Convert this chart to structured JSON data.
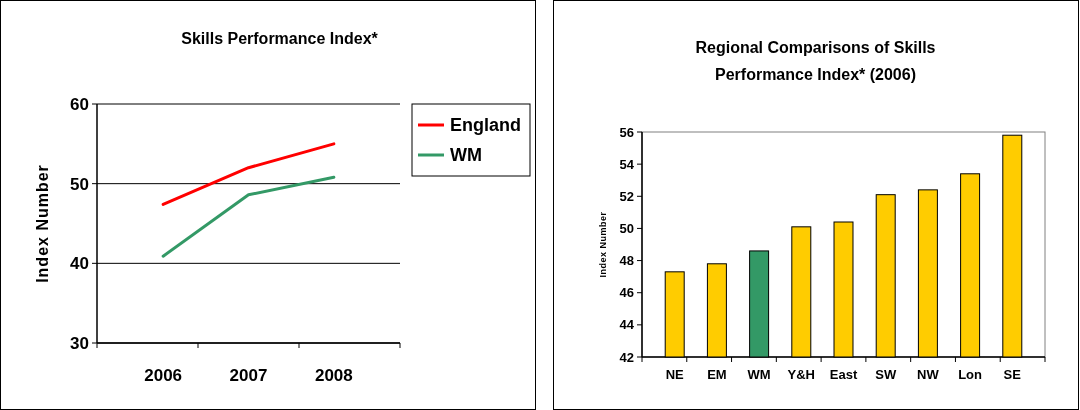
{
  "chart_data": [
    {
      "type": "line",
      "title": "Skills Performance Index*",
      "ylabel": "Index Number",
      "categories": [
        "2006",
        "2007",
        "2008"
      ],
      "series": [
        {
          "name": "England",
          "color": "#ff0000",
          "values": [
            47.4,
            52.0,
            55.0
          ]
        },
        {
          "name": "WM",
          "color": "#339966",
          "values": [
            40.9,
            48.6,
            50.8
          ]
        }
      ],
      "ylim": [
        30,
        60
      ],
      "yticks": [
        30,
        40,
        50,
        60
      ],
      "grid": "y",
      "legend": "top right",
      "marker": "none"
    },
    {
      "type": "bar",
      "title": "Regional Comparisons of Skills Performance Index* (2006)",
      "ylabel": "Index Number",
      "categories": [
        "NE",
        "EM",
        "WM",
        "Y&H",
        "East",
        "SW",
        "NW",
        "Lon",
        "SE"
      ],
      "values": [
        47.3,
        47.8,
        48.6,
        50.1,
        50.4,
        52.1,
        52.4,
        53.4,
        55.8
      ],
      "colors": [
        "#ffcc00",
        "#ffcc00",
        "#339966",
        "#ffcc00",
        "#ffcc00",
        "#ffcc00",
        "#ffcc00",
        "#ffcc00",
        "#ffcc00"
      ],
      "ylim": [
        42,
        56
      ],
      "yticks": [
        42,
        44,
        46,
        48,
        50,
        52,
        54,
        56
      ]
    }
  ]
}
